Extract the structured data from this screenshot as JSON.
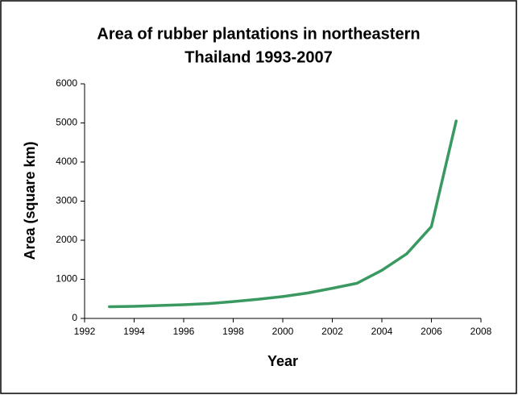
{
  "chart_data": {
    "type": "line",
    "title": [
      "Area of rubber plantations in northeastern",
      "Thailand 1993-2007"
    ],
    "x_label": "Year",
    "y_label": "Area (square km)",
    "x": [
      1993,
      1994,
      1995,
      1996,
      1997,
      1998,
      1999,
      2000,
      2001,
      2002,
      2003,
      2004,
      2005,
      2006,
      2007
    ],
    "series": [
      {
        "name": "Area",
        "color": "#3a9960",
        "values": [
          300,
          310,
          330,
          350,
          380,
          430,
          490,
          560,
          650,
          770,
          900,
          1230,
          1650,
          2350,
          5050
        ]
      }
    ],
    "xlim": [
      1992,
      2008
    ],
    "xticks": [
      1992,
      1994,
      1996,
      1998,
      2000,
      2002,
      2004,
      2006,
      2008
    ],
    "ylim": [
      0,
      6000
    ],
    "yticks": [
      0,
      1000,
      2000,
      3000,
      4000,
      5000,
      6000
    ],
    "grid": false,
    "legend": false
  }
}
